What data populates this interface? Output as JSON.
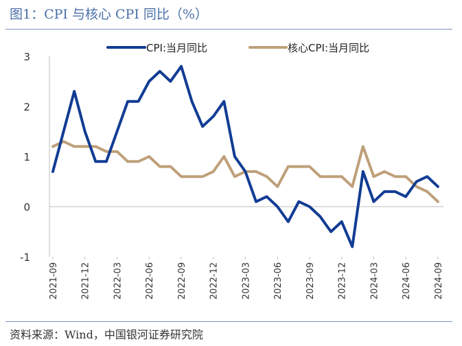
{
  "header": {
    "title": "图1：CPI 与核心 CPI 同比（%）"
  },
  "footer": {
    "source": "资料来源：Wind，中国银河证券研究院"
  },
  "colors": {
    "cpi": "#123c94",
    "core": "#bfa07a",
    "title": "#4a6fa8",
    "rule": "#7c93bb"
  },
  "chart_data": {
    "type": "line",
    "title": "",
    "xlabel": "",
    "ylabel": "",
    "ylim": [
      -1,
      3
    ],
    "yticks": [
      "-1",
      "0",
      "1",
      "2",
      "3"
    ],
    "grid": false,
    "legend_position": "top",
    "x": [
      "2021-09",
      "2021-10",
      "2021-11",
      "2021-12",
      "2022-01",
      "2022-02",
      "2022-03",
      "2022-04",
      "2022-05",
      "2022-06",
      "2022-07",
      "2022-08",
      "2022-09",
      "2022-10",
      "2022-11",
      "2022-12",
      "2023-01",
      "2023-02",
      "2023-03",
      "2023-04",
      "2023-05",
      "2023-06",
      "2023-07",
      "2023-08",
      "2023-09",
      "2023-10",
      "2023-11",
      "2023-12",
      "2024-01",
      "2024-02",
      "2024-03",
      "2024-04",
      "2024-05",
      "2024-06",
      "2024-07",
      "2024-08",
      "2024-09"
    ],
    "xtick_labels": [
      "2021-09",
      "2021-12",
      "2022-03",
      "2022-06",
      "2022-09",
      "2022-12",
      "2023-03",
      "2023-06",
      "2023-09",
      "2023-12",
      "2024-03",
      "2024-06",
      "2024-09"
    ],
    "series": [
      {
        "name": "CPI:当月同比",
        "color": "#123c94",
        "values": [
          0.7,
          1.5,
          2.3,
          1.5,
          0.9,
          0.9,
          1.5,
          2.1,
          2.1,
          2.5,
          2.7,
          2.5,
          2.8,
          2.1,
          1.6,
          1.8,
          2.1,
          1.0,
          0.7,
          0.1,
          0.2,
          0.0,
          -0.3,
          0.1,
          0.0,
          -0.2,
          -0.5,
          -0.3,
          -0.8,
          0.7,
          0.1,
          0.3,
          0.3,
          0.2,
          0.5,
          0.6,
          0.4
        ]
      },
      {
        "name": "核心CPI:当月同比",
        "color": "#bfa07a",
        "values": [
          1.2,
          1.3,
          1.2,
          1.2,
          1.2,
          1.1,
          1.1,
          0.9,
          0.9,
          1.0,
          0.8,
          0.8,
          0.6,
          0.6,
          0.6,
          0.7,
          1.0,
          0.6,
          0.7,
          0.7,
          0.6,
          0.4,
          0.8,
          0.8,
          0.8,
          0.6,
          0.6,
          0.6,
          0.4,
          1.2,
          0.6,
          0.7,
          0.6,
          0.6,
          0.4,
          0.3,
          0.1
        ]
      }
    ]
  }
}
